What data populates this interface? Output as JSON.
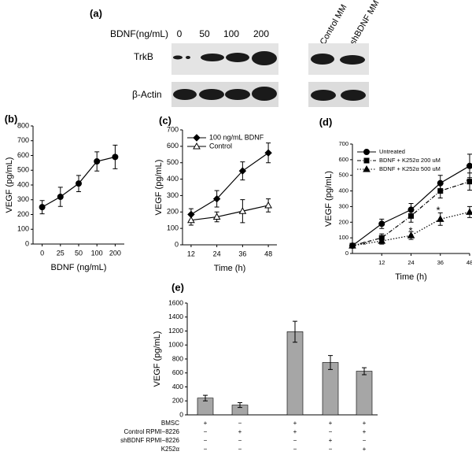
{
  "blot": {
    "label": "(a)",
    "dose_title": "BDNF(ng/mL)",
    "doses": [
      "0",
      "50",
      "100",
      "200"
    ],
    "lanes": [
      "Control MM",
      "shBDNF MM"
    ],
    "rows": [
      "TrkB",
      "β-Actin"
    ]
  },
  "chart_data": [
    {
      "type": "line",
      "label": "(b)",
      "ylabel": "VEGF (pg/mL)",
      "xlabel": "BDNF (ng/mL)",
      "categories": [
        "0",
        "25",
        "50",
        "100",
        "200"
      ],
      "values": [
        250,
        320,
        410,
        560,
        590
      ],
      "errors": [
        45,
        65,
        55,
        65,
        80
      ],
      "color": "#000000",
      "marker": "circle",
      "ylim": [
        0,
        800
      ],
      "yticks": [
        0,
        100,
        200,
        300,
        400,
        500,
        600,
        700,
        800
      ]
    },
    {
      "type": "line",
      "label": "(c)",
      "ylabel": "VEGF (pg/mL)",
      "xlabel": "Time (h)",
      "x": [
        12,
        24,
        36,
        48
      ],
      "xlim": [
        8,
        52
      ],
      "xticks": [
        12,
        24,
        36,
        48
      ],
      "ylim": [
        0,
        700
      ],
      "yticks": [
        0,
        100,
        200,
        300,
        400,
        500,
        600,
        700
      ],
      "legend": "upper left",
      "series": [
        {
          "name": "100 ng/mL BDNF",
          "color": "#000000",
          "marker": "diamond",
          "dash": "solid",
          "values": [
            185,
            280,
            450,
            560
          ],
          "errors": [
            35,
            50,
            55,
            60
          ]
        },
        {
          "name": "Control",
          "color": "#000000",
          "marker": "open-triangle",
          "dash": "solid",
          "values": [
            150,
            170,
            205,
            240
          ],
          "errors": [
            30,
            30,
            70,
            40
          ]
        }
      ]
    },
    {
      "type": "line",
      "label": "(d)",
      "ylabel": "VEGF (pg/mL)",
      "xlabel": "Time (h)",
      "x": [
        0,
        12,
        24,
        36,
        48
      ],
      "xlim": [
        0,
        48
      ],
      "xticks": [
        12,
        24,
        36,
        48
      ],
      "ylim": [
        0,
        700
      ],
      "yticks": [
        0,
        100,
        200,
        300,
        400,
        500,
        600,
        700
      ],
      "legend": "upper left",
      "series": [
        {
          "name": "Untreated",
          "color": "#000000",
          "marker": "circle",
          "dash": "solid",
          "values": [
            50,
            190,
            280,
            450,
            560
          ],
          "errors": [
            10,
            30,
            40,
            50,
            75
          ]
        },
        {
          "name": "BDNF + K252α 200 uM",
          "color": "#000000",
          "marker": "square",
          "dash": "dashdot",
          "values": [
            50,
            100,
            240,
            400,
            460
          ],
          "errors": [
            10,
            25,
            40,
            45,
            55
          ]
        },
        {
          "name": "BDNF + K252α 500 uM",
          "color": "#000000",
          "marker": "triangle",
          "dash": "dotted",
          "values": [
            50,
            80,
            115,
            220,
            265
          ],
          "errors": [
            10,
            20,
            25,
            40,
            35
          ]
        }
      ],
      "annotations": [
        "*",
        "*",
        "*",
        "*"
      ]
    },
    {
      "type": "bar",
      "label": "(e)",
      "ylabel": "VEGF (pg/mL)",
      "values": [
        240,
        140,
        1190,
        750,
        625
      ],
      "errors": [
        40,
        35,
        150,
        100,
        50
      ],
      "color": "#a6a6a6",
      "ylim": [
        0,
        1600
      ],
      "yticks": [
        0,
        200,
        400,
        600,
        800,
        1000,
        1200,
        1400,
        1600
      ],
      "table": [
        {
          "label": "BMSC",
          "cells": [
            "+",
            "−",
            "+",
            "+",
            "+"
          ]
        },
        {
          "label": "Control RPMI−8226",
          "cells": [
            "−",
            "+",
            "+",
            "−",
            "+"
          ]
        },
        {
          "label": "shBDNF RPMI−8226",
          "cells": [
            "−",
            "−",
            "−",
            "+",
            "−"
          ]
        },
        {
          "label": "K252α",
          "cells": [
            "−",
            "−",
            "−",
            "−",
            "+"
          ]
        }
      ]
    }
  ]
}
